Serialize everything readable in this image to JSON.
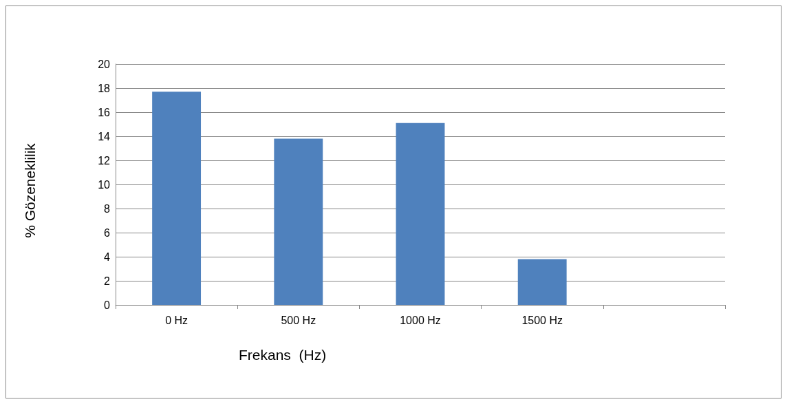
{
  "chart_data": {
    "type": "bar",
    "xlabel": "Frekans  (Hz)",
    "ylabel": "% Gözeneklilik",
    "categories": [
      "0 Hz",
      "500 Hz",
      "1000 Hz",
      "1500 Hz",
      null
    ],
    "values": [
      17.7,
      13.8,
      15.1,
      3.8,
      null
    ],
    "color": "#4f81bd",
    "ylim": [
      0,
      20
    ],
    "yticks": [
      0,
      2,
      4,
      6,
      8,
      10,
      12,
      14,
      16,
      18,
      20
    ],
    "grid": "y"
  }
}
